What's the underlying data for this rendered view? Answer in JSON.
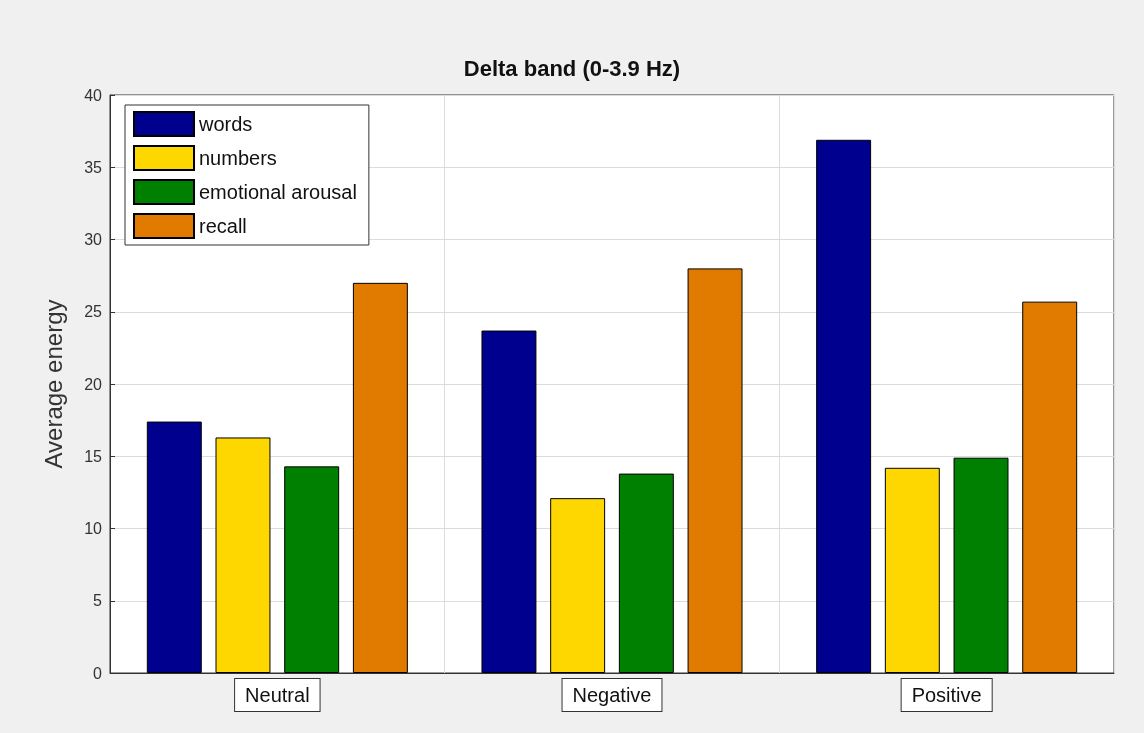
{
  "chart_data": {
    "type": "bar",
    "title": "Delta band (0-3.9 Hz)",
    "ylabel": "Average energy",
    "categories": [
      "Neutral",
      "Negative",
      "Positive"
    ],
    "series": [
      {
        "name": "words",
        "color": "#00008f",
        "values": [
          17.4,
          23.7,
          36.9
        ]
      },
      {
        "name": "numbers",
        "color": "#ffd700",
        "values": [
          16.3,
          12.1,
          14.2
        ]
      },
      {
        "name": "emotional arousal",
        "color": "#008000",
        "values": [
          14.3,
          13.8,
          14.9
        ]
      },
      {
        "name": "recall",
        "color": "#e07b00",
        "values": [
          27.0,
          28.0,
          25.7
        ]
      }
    ],
    "ylim": [
      0,
      40
    ],
    "yticks": [
      0,
      5,
      10,
      15,
      20,
      25,
      30,
      35,
      40
    ],
    "grid": true,
    "legend": "top left"
  }
}
